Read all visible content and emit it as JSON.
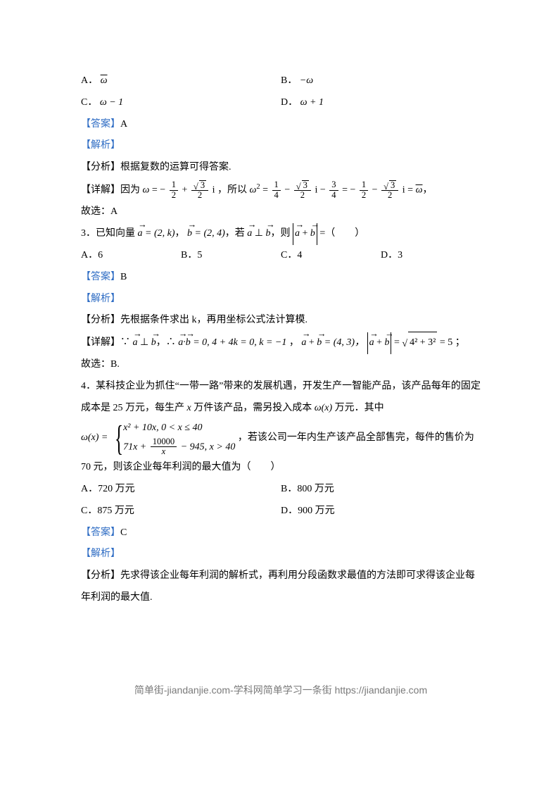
{
  "q_prev": {
    "options": {
      "a": {
        "label": "A．",
        "val": "ω",
        "overline": true
      },
      "b": {
        "label": "B．",
        "val": "−ω"
      },
      "c": {
        "label": "C．",
        "val": "ω − 1"
      },
      "d": {
        "label": "D．",
        "val": "ω + 1"
      }
    },
    "answer": {
      "label": "【答案】",
      "val": "A"
    },
    "jiexi": "【解析】",
    "fenxi": {
      "label": "【分析】",
      "val": "根据复数的运算可得答案."
    },
    "xiangjie": {
      "label": "【详解】",
      "prefix": "因为",
      "omega_eq": {
        "num1": "1",
        "den1": "2",
        "num2": "3",
        "den2": "2"
      },
      "mid": "，所以",
      "sq_parts": {
        "t1n": "1",
        "t1d": "4",
        "t2n": "3",
        "t2d": "2",
        "t3n": "3",
        "t3d": "4",
        "t4n": "1",
        "t4d": "2",
        "t5n": "3",
        "t5d": "2"
      },
      "tail": "，"
    },
    "guxuan": "故选：A"
  },
  "q3": {
    "stem": {
      "num": "3．",
      "t1": "已知向量",
      "a_vec": "a",
      "a_val": "= (2, k)",
      "comma1": "，",
      "b_vec": "b",
      "b_val": "= (2, 4)",
      "comma2": "，若",
      "perp": " ⊥ ",
      "comma3": "，则",
      "plus": " + ",
      "tail": " =（　　）"
    },
    "options": {
      "a": {
        "label": "A．",
        "val": "6"
      },
      "b": {
        "label": "B．",
        "val": "5"
      },
      "c": {
        "label": "C．",
        "val": "4"
      },
      "d": {
        "label": "D．",
        "val": "3"
      }
    },
    "answer": {
      "label": "【答案】",
      "val": "B"
    },
    "jiexi": "【解析】",
    "fenxi": {
      "label": "【分析】",
      "val": "先根据条件求出 k，再用坐标公式法计算模."
    },
    "xiangjie": {
      "label": "【详解】",
      "t1": "∵",
      "perp": " ⊥ ",
      "t2": "，∴",
      "dot": "·",
      "eq0": " = 0, 4 + 4k = 0, k = −1",
      "t3": " ， ",
      "plus": " + ",
      "eqv": " = (4, 3)，",
      "eqres": " = ",
      "sqrt_in": "4² + 3²",
      "eq5": " = 5",
      "tail": " ；"
    },
    "guxuan": "故选：B."
  },
  "q4": {
    "num": "4．",
    "stem1": "某科技企业为抓住“一带一路”带来的发展机遇，开发生产一智能产品，该产品每年的固定成本是 25 万元，每生产 ",
    "x": "x",
    "stem2": " 万件该产品，需另投入成本 ",
    "omega_x": "ω(x)",
    "stem3": " 万元．其中",
    "piecewise": {
      "lhs": "ω(x) = ",
      "case1": "x² + 10x,  0 < x ≤ 40",
      "case2_a": "71x + ",
      "case2_num": "10000",
      "case2_den": "x",
      "case2_b": " − 945,  x > 40"
    },
    "stem4": "，若该公司一年内生产该产品全部售完，每件的售价为 70 元，则该企业每年利润的最大值为（　　）",
    "options": {
      "a": {
        "label": "A．",
        "val": "720 万元"
      },
      "b": {
        "label": "B．",
        "val": "800 万元"
      },
      "c": {
        "label": "C．",
        "val": "875 万元"
      },
      "d": {
        "label": "D．",
        "val": "900 万元"
      }
    },
    "answer": {
      "label": "【答案】",
      "val": "C"
    },
    "jiexi": "【解析】",
    "fenxi": {
      "label": "【分析】",
      "val": "先求得该企业每年利润的解析式，再利用分段函数求最值的方法即可求得该企业每年利润的最大值."
    }
  },
  "footer": "简单街-jiandanjie.com-学科网简单学习一条街 https://jiandanjie.com",
  "colors": {
    "text": "#000000",
    "blue": "#2e6cc4",
    "footer": "#7a7a7a",
    "background": "#ffffff"
  },
  "fonts": {
    "body": "SimSun / Songti",
    "size_pt": 10.5,
    "line_height": 2.2
  }
}
